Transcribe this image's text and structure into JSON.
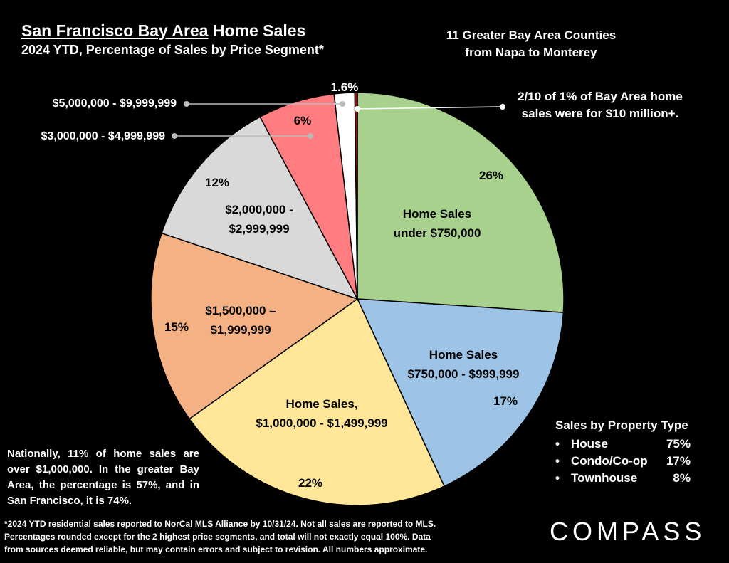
{
  "header": {
    "title_underlined": "San Francisco Bay Area",
    "title_rest": " Home Sales",
    "subtitle": "2024 YTD, Percentage of Sales by Price Segment*"
  },
  "counties_note": [
    "11 Greater Bay Area Counties",
    "from Napa to Monterey"
  ],
  "top_note": [
    "2/10 of 1% of Bay Area home",
    "sales were for $10 million+."
  ],
  "national_note": "Nationally, 11% of home sales are over $1,000,000. In the greater Bay Area, the percentage is 57%, and in San Francisco, it is 74%.",
  "footnote": [
    "*2024 YTD residential sales reported to NorCal MLS Alliance by 10/31/24. Not all sales are reported to MLS.",
    "Percentages rounded except for the 2 highest price segments, and total will not exactly equal 100%. Data",
    "from sources deemed reliable, but may contain errors and subject to revision. All numbers approximate."
  ],
  "brand": "COMPASS",
  "property_type": {
    "header": "Sales by Property Type",
    "rows": [
      {
        "bullet": "•",
        "name": "House",
        "pct": "75%"
      },
      {
        "bullet": "•",
        "name": "Condo/Co-op",
        "pct": "17%"
      },
      {
        "bullet": "•",
        "name": "Townhouse",
        "pct": "8%"
      }
    ]
  },
  "chart_data": {
    "type": "pie",
    "start": "12 o'clock, clockwise",
    "slices": [
      {
        "value": 26,
        "pct_label": "26%",
        "label": [
          "Home Sales",
          "under $750,000"
        ],
        "color": "#A9D18E"
      },
      {
        "value": 17,
        "pct_label": "17%",
        "label": [
          "Home Sales",
          "$750,000 - $999,999"
        ],
        "color": "#9DC3E6"
      },
      {
        "value": 22,
        "pct_label": "22%",
        "label": [
          "Home Sales,",
          "$1,000,000 - $1,499,999"
        ],
        "color": "#FFE699"
      },
      {
        "value": 15,
        "pct_label": "15%",
        "label": [
          "$1,500,000 –",
          "$1,999,999"
        ],
        "color": "#F4B183"
      },
      {
        "value": 12,
        "pct_label": "12%",
        "label": [
          "$2,000,000 -",
          "$2,999,999"
        ],
        "color": "#D9D9D9"
      },
      {
        "value": 6,
        "pct_label": "6%",
        "label": [
          "$3,000,000 - $4,999,999"
        ],
        "color": "#FF7C80"
      },
      {
        "value": 1.6,
        "pct_label": "1.6%",
        "label": [
          "$5,000,000 - $9,999,999"
        ],
        "color": "#FFFFFF"
      },
      {
        "value": 0.2,
        "pct_label": "",
        "label": [],
        "color": "#C00000"
      }
    ]
  }
}
